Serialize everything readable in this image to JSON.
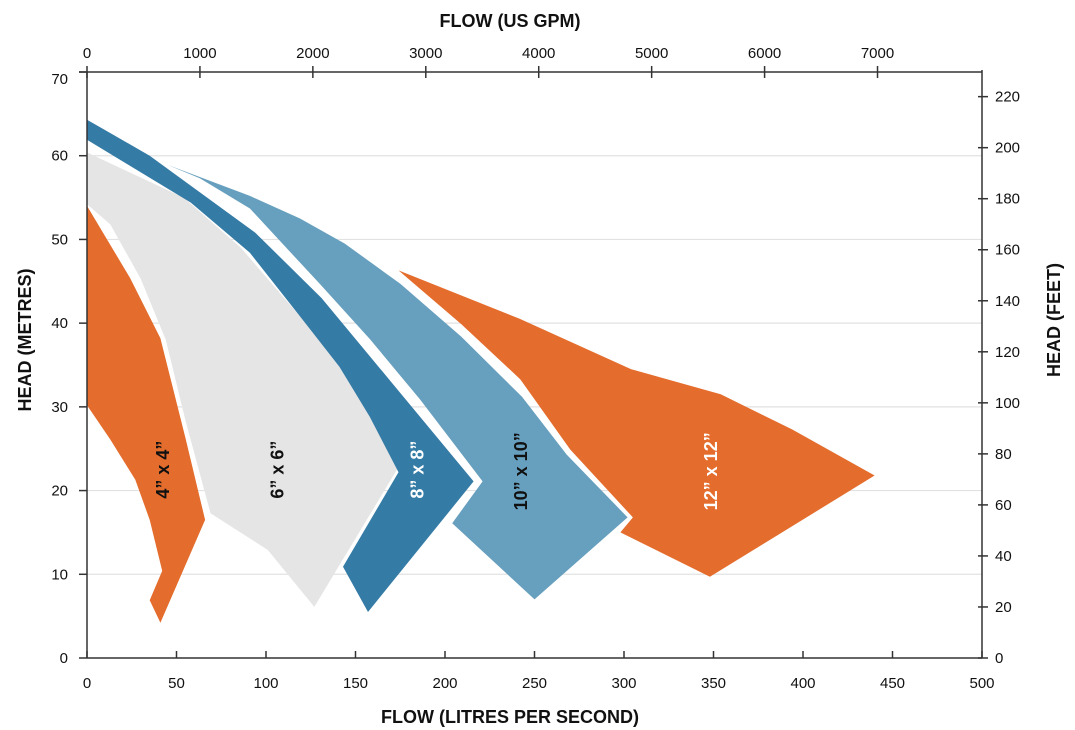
{
  "chart_data": {
    "type": "area",
    "x_bottom": {
      "label": "FLOW (LITRES PER SECOND)",
      "range": [
        0,
        500
      ],
      "ticks": [
        0,
        50,
        100,
        150,
        200,
        250,
        300,
        350,
        400,
        450,
        500
      ]
    },
    "x_top": {
      "label": "FLOW (US GPM)",
      "range": [
        0,
        7925
      ],
      "ticks": [
        0,
        1000,
        2000,
        3000,
        4000,
        5000,
        6000,
        7000
      ]
    },
    "y_left": {
      "label": "HEAD  (METRES)",
      "range": [
        0,
        70
      ],
      "ticks": [
        0,
        10,
        20,
        30,
        40,
        50,
        60,
        70
      ]
    },
    "y_right": {
      "label": "HEAD  (FEET)",
      "range": [
        0,
        229.7
      ],
      "ticks": [
        0,
        20,
        40,
        60,
        80,
        100,
        120,
        140,
        160,
        180,
        200,
        220
      ]
    },
    "grid": "horizontal at metre ticks",
    "colors": {
      "orange": "#E46C2C",
      "dark_blue": "#347BA6",
      "light_blue": "#679FBE",
      "gray": "#E5E5E5"
    },
    "series": [
      {
        "name": "6” x 6”",
        "color": "#E5E5E5",
        "label_color": "#111111",
        "label_at": [
          106,
          22.5
        ],
        "polygon": [
          [
            0,
            60.4
          ],
          [
            54,
            55
          ],
          [
            86,
            49
          ],
          [
            119,
            40.8
          ],
          [
            141,
            34.8
          ],
          [
            158,
            28.8
          ],
          [
            174,
            22.8
          ],
          [
            127,
            6.1
          ],
          [
            101,
            12.9
          ],
          [
            69,
            17.3
          ],
          [
            55,
            28.4
          ],
          [
            44,
            38
          ],
          [
            30,
            45.3
          ],
          [
            13,
            51.8
          ],
          [
            0,
            54.2
          ]
        ]
      },
      {
        "name": "4” x 4”",
        "color": "#E46C2C",
        "label_color": "#111111",
        "label_at": [
          42,
          22.5
        ],
        "polygon": [
          [
            0,
            54
          ],
          [
            24,
            45.4
          ],
          [
            41,
            38.2
          ],
          [
            55,
            26.3
          ],
          [
            66,
            16.5
          ],
          [
            41,
            4.2
          ],
          [
            35,
            6.9
          ],
          [
            42,
            10.4
          ],
          [
            35,
            16.5
          ],
          [
            27,
            21.3
          ],
          [
            13,
            26.1
          ],
          [
            0,
            30.2
          ]
        ]
      },
      {
        "name": "8” x 8”",
        "color": "#347BA6",
        "label_color": "#FFFFFF",
        "label_at": [
          184,
          22.5
        ],
        "polygon": [
          [
            0,
            64.3
          ],
          [
            35,
            60
          ],
          [
            94,
            50.8
          ],
          [
            131,
            43
          ],
          [
            164,
            34.5
          ],
          [
            216,
            21.1
          ],
          [
            157,
            5.5
          ],
          [
            143,
            10.9
          ],
          [
            174,
            22.2
          ],
          [
            158,
            28.8
          ],
          [
            141,
            34.8
          ],
          [
            119,
            40.8
          ],
          [
            91,
            48.4
          ],
          [
            58,
            54.4
          ],
          [
            0,
            61.9
          ]
        ]
      },
      {
        "name": "10” x 10”",
        "color": "#679FBE",
        "label_color": "#111111",
        "label_at": [
          242,
          22.3
        ],
        "polygon": [
          [
            45,
            58.9
          ],
          [
            91,
            55.2
          ],
          [
            119,
            52.5
          ],
          [
            144,
            49.5
          ],
          [
            175,
            44.7
          ],
          [
            209,
            38.4
          ],
          [
            243,
            31.2
          ],
          [
            268,
            24.3
          ],
          [
            302,
            16.8
          ],
          [
            250,
            7.0
          ],
          [
            204,
            16.1
          ],
          [
            221,
            21.1
          ],
          [
            186,
            30.9
          ],
          [
            158,
            38.1
          ],
          [
            130,
            44.7
          ],
          [
            91,
            53.7
          ],
          [
            63,
            57.3
          ]
        ]
      },
      {
        "name": "12” x 12”",
        "color": "#E46C2C",
        "label_color": "#FFFFFF",
        "label_at": [
          348,
          22.3
        ],
        "polygon": [
          [
            174,
            46.3
          ],
          [
            242,
            40.5
          ],
          [
            304,
            34.5
          ],
          [
            354,
            31.5
          ],
          [
            394,
            27.3
          ],
          [
            440,
            21.8
          ],
          [
            348,
            9.7
          ],
          [
            298,
            15
          ],
          [
            305,
            16.8
          ],
          [
            270,
            24.9
          ],
          [
            242,
            33.3
          ],
          [
            209,
            39.9
          ]
        ]
      }
    ]
  }
}
